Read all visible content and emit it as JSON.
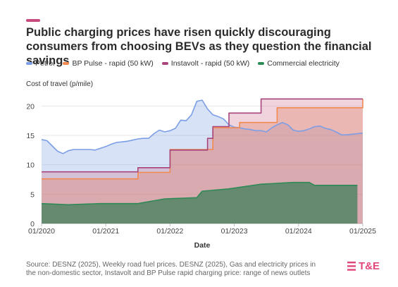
{
  "header": {
    "title": "Public charging prices have risen quickly discouraging consumers from choosing BEVs as they question the financial savings"
  },
  "footer": {
    "source": "Source: DESNZ (2025), Weekly road fuel prices. DESNZ (2025), Gas and electricity prices in the non-domestic sector, Instavolt and BP Pulse rapid charging price: range of news outlets",
    "logo": "T&E"
  },
  "colors": {
    "accent": "#c94a7e",
    "petrol": "#7b9ee6",
    "bp_pulse": "#f2894f",
    "instavolt": "#a8457a",
    "commercial": "#2e8b57"
  },
  "chart_data": {
    "type": "area",
    "title": "Public charging prices have risen quickly discouraging consumers from choosing BEVs as they question the financial savings",
    "xlabel": "Date",
    "ylabel": "Cost of travel (p/mile)",
    "x_ticks": [
      "01/2020",
      "01/2021",
      "01/2022",
      "01/2023",
      "01/2024",
      "01/2025"
    ],
    "y_ticks": [
      0,
      5,
      10,
      15,
      20
    ],
    "xlim": [
      "2020-01",
      "2025-01"
    ],
    "ylim": [
      0,
      21
    ],
    "grid": "horizontal",
    "legend": "top",
    "series": [
      {
        "name": "Petrol",
        "color": "#7b9ee6",
        "points": [
          [
            "2020-01",
            14.3
          ],
          [
            "2020-02",
            14.1
          ],
          [
            "2020-03",
            13.2
          ],
          [
            "2020-04",
            12.3
          ],
          [
            "2020-05",
            11.9
          ],
          [
            "2020-06",
            12.4
          ],
          [
            "2020-07",
            12.6
          ],
          [
            "2020-08",
            12.6
          ],
          [
            "2020-09",
            12.6
          ],
          [
            "2020-10",
            12.6
          ],
          [
            "2020-11",
            12.5
          ],
          [
            "2020-12",
            12.8
          ],
          [
            "2021-01",
            13.1
          ],
          [
            "2021-02",
            13.5
          ],
          [
            "2021-03",
            13.8
          ],
          [
            "2021-04",
            13.9
          ],
          [
            "2021-05",
            14.0
          ],
          [
            "2021-06",
            14.2
          ],
          [
            "2021-07",
            14.4
          ],
          [
            "2021-08",
            14.5
          ],
          [
            "2021-09",
            14.5
          ],
          [
            "2021-10",
            15.3
          ],
          [
            "2021-11",
            15.9
          ],
          [
            "2021-12",
            15.6
          ],
          [
            "2022-01",
            15.8
          ],
          [
            "2022-02",
            16.2
          ],
          [
            "2022-03",
            17.6
          ],
          [
            "2022-04",
            17.5
          ],
          [
            "2022-05",
            18.5
          ],
          [
            "2022-06",
            20.8
          ],
          [
            "2022-07",
            21.0
          ],
          [
            "2022-08",
            19.5
          ],
          [
            "2022-09",
            18.5
          ],
          [
            "2022-10",
            18.2
          ],
          [
            "2022-11",
            17.8
          ],
          [
            "2022-12",
            16.8
          ],
          [
            "2023-01",
            16.4
          ],
          [
            "2023-02",
            16.3
          ],
          [
            "2023-03",
            16.1
          ],
          [
            "2023-04",
            16.0
          ],
          [
            "2023-05",
            15.8
          ],
          [
            "2023-06",
            15.8
          ],
          [
            "2023-07",
            15.6
          ],
          [
            "2023-08",
            16.3
          ],
          [
            "2023-09",
            16.8
          ],
          [
            "2023-10",
            17.2
          ],
          [
            "2023-11",
            16.8
          ],
          [
            "2023-12",
            15.9
          ],
          [
            "2024-01",
            15.7
          ],
          [
            "2024-02",
            15.8
          ],
          [
            "2024-03",
            16.1
          ],
          [
            "2024-04",
            16.5
          ],
          [
            "2024-05",
            16.6
          ],
          [
            "2024-06",
            16.2
          ],
          [
            "2024-07",
            16.0
          ],
          [
            "2024-08",
            15.6
          ],
          [
            "2024-09",
            15.1
          ],
          [
            "2024-10",
            15.1
          ],
          [
            "2024-11",
            15.2
          ],
          [
            "2024-12",
            15.3
          ],
          [
            "2025-01",
            15.4
          ]
        ]
      },
      {
        "name": "BP Pulse - rapid (50 kW)",
        "color": "#f2894f",
        "points": [
          [
            "2020-01",
            7.6
          ],
          [
            "2021-06",
            7.6
          ],
          [
            "2021-07",
            8.7
          ],
          [
            "2021-12",
            8.7
          ],
          [
            "2022-01",
            12.6
          ],
          [
            "2022-08",
            12.6
          ],
          [
            "2022-09",
            16.3
          ],
          [
            "2023-01",
            16.3
          ],
          [
            "2023-02",
            17.2
          ],
          [
            "2023-08",
            17.2
          ],
          [
            "2023-09",
            19.7
          ],
          [
            "2024-12",
            19.7
          ],
          [
            "2025-01",
            21.2
          ]
        ]
      },
      {
        "name": "Instavolt - rapid (50 kW)",
        "color": "#a8457a",
        "points": [
          [
            "2020-01",
            8.8
          ],
          [
            "2021-06",
            8.8
          ],
          [
            "2021-07",
            9.5
          ],
          [
            "2021-12",
            9.5
          ],
          [
            "2022-01",
            12.5
          ],
          [
            "2022-07",
            12.5
          ],
          [
            "2022-08",
            14.5
          ],
          [
            "2022-09",
            16.5
          ],
          [
            "2022-11",
            16.5
          ],
          [
            "2022-12",
            18.8
          ],
          [
            "2023-05",
            18.8
          ],
          [
            "2023-06",
            21.2
          ],
          [
            "2025-01",
            21.2
          ]
        ]
      },
      {
        "name": "Commercial electricity",
        "color": "#2e8b57",
        "points": [
          [
            "2020-01",
            3.4
          ],
          [
            "2020-06",
            3.2
          ],
          [
            "2020-12",
            3.4
          ],
          [
            "2021-06",
            3.4
          ],
          [
            "2021-07",
            3.4
          ],
          [
            "2021-12",
            4.2
          ],
          [
            "2022-06",
            4.4
          ],
          [
            "2022-07",
            5.5
          ],
          [
            "2022-12",
            5.9
          ],
          [
            "2023-06",
            6.7
          ],
          [
            "2023-12",
            7.0
          ],
          [
            "2024-03",
            7.0
          ],
          [
            "2024-04",
            6.5
          ],
          [
            "2024-12",
            6.5
          ]
        ]
      }
    ]
  }
}
